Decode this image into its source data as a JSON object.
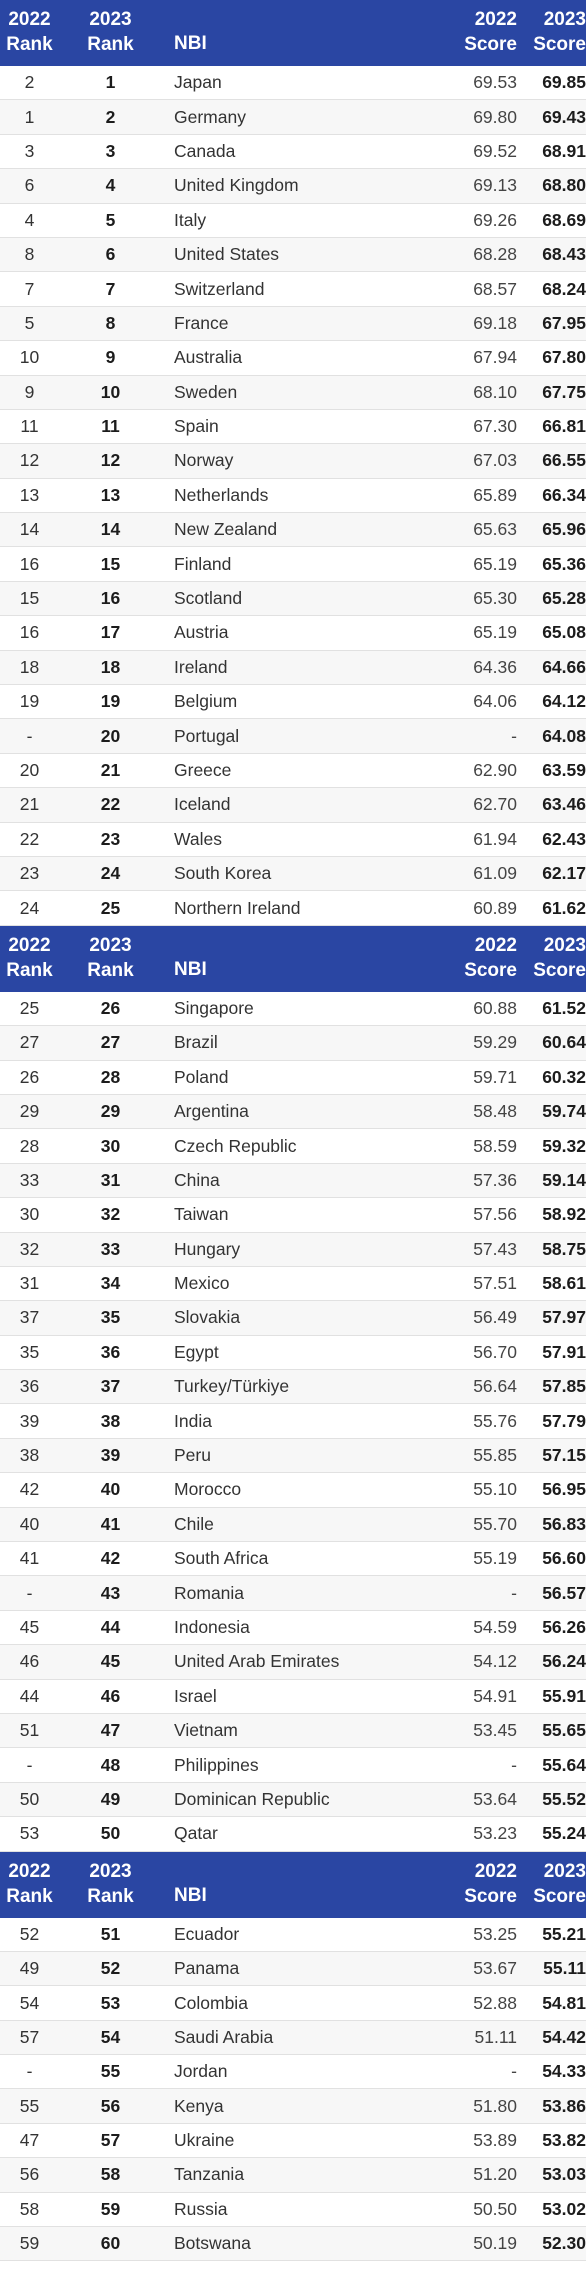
{
  "header": {
    "prev_rank": "2022\nRank",
    "prev_rank_l1": "2022",
    "prev_rank_l2": "Rank",
    "cur_rank_l1": "2023",
    "cur_rank_l2": "Rank",
    "name": "NBI",
    "prev_score_l1": "2022",
    "prev_score_l2": "Score",
    "cur_score_l1": "2023",
    "cur_score_l2": "Score"
  },
  "sections": [
    {
      "rows": [
        {
          "r22": "2",
          "r23": "1",
          "name": "Japan",
          "s22": "69.53",
          "s23": "69.85"
        },
        {
          "r22": "1",
          "r23": "2",
          "name": "Germany",
          "s22": "69.80",
          "s23": "69.43"
        },
        {
          "r22": "3",
          "r23": "3",
          "name": "Canada",
          "s22": "69.52",
          "s23": "68.91"
        },
        {
          "r22": "6",
          "r23": "4",
          "name": "United Kingdom",
          "s22": "69.13",
          "s23": "68.80"
        },
        {
          "r22": "4",
          "r23": "5",
          "name": "Italy",
          "s22": "69.26",
          "s23": "68.69"
        },
        {
          "r22": "8",
          "r23": "6",
          "name": "United States",
          "s22": "68.28",
          "s23": "68.43"
        },
        {
          "r22": "7",
          "r23": "7",
          "name": "Switzerland",
          "s22": "68.57",
          "s23": "68.24"
        },
        {
          "r22": "5",
          "r23": "8",
          "name": "France",
          "s22": "69.18",
          "s23": "67.95"
        },
        {
          "r22": "10",
          "r23": "9",
          "name": "Australia",
          "s22": "67.94",
          "s23": "67.80"
        },
        {
          "r22": "9",
          "r23": "10",
          "name": "Sweden",
          "s22": "68.10",
          "s23": "67.75"
        },
        {
          "r22": "11",
          "r23": "11",
          "name": "Spain",
          "s22": "67.30",
          "s23": "66.81"
        },
        {
          "r22": "12",
          "r23": "12",
          "name": "Norway",
          "s22": "67.03",
          "s23": "66.55"
        },
        {
          "r22": "13",
          "r23": "13",
          "name": "Netherlands",
          "s22": "65.89",
          "s23": "66.34"
        },
        {
          "r22": "14",
          "r23": "14",
          "name": "New Zealand",
          "s22": "65.63",
          "s23": "65.96"
        },
        {
          "r22": "16",
          "r23": "15",
          "name": "Finland",
          "s22": "65.19",
          "s23": "65.36"
        },
        {
          "r22": "15",
          "r23": "16",
          "name": "Scotland",
          "s22": "65.30",
          "s23": "65.28"
        },
        {
          "r22": "16",
          "r23": "17",
          "name": "Austria",
          "s22": "65.19",
          "s23": "65.08"
        },
        {
          "r22": "18",
          "r23": "18",
          "name": "Ireland",
          "s22": "64.36",
          "s23": "64.66"
        },
        {
          "r22": "19",
          "r23": "19",
          "name": "Belgium",
          "s22": "64.06",
          "s23": "64.12"
        },
        {
          "r22": "-",
          "r23": "20",
          "name": "Portugal",
          "s22": "-",
          "s23": "64.08"
        },
        {
          "r22": "20",
          "r23": "21",
          "name": "Greece",
          "s22": "62.90",
          "s23": "63.59"
        },
        {
          "r22": "21",
          "r23": "22",
          "name": "Iceland",
          "s22": "62.70",
          "s23": "63.46"
        },
        {
          "r22": "22",
          "r23": "23",
          "name": "Wales",
          "s22": "61.94",
          "s23": "62.43"
        },
        {
          "r22": "23",
          "r23": "24",
          "name": "South Korea",
          "s22": "61.09",
          "s23": "62.17"
        },
        {
          "r22": "24",
          "r23": "25",
          "name": "Northern Ireland",
          "s22": "60.89",
          "s23": "61.62"
        }
      ]
    },
    {
      "rows": [
        {
          "r22": "25",
          "r23": "26",
          "name": "Singapore",
          "s22": "60.88",
          "s23": "61.52"
        },
        {
          "r22": "27",
          "r23": "27",
          "name": "Brazil",
          "s22": "59.29",
          "s23": "60.64"
        },
        {
          "r22": "26",
          "r23": "28",
          "name": "Poland",
          "s22": "59.71",
          "s23": "60.32"
        },
        {
          "r22": "29",
          "r23": "29",
          "name": "Argentina",
          "s22": "58.48",
          "s23": "59.74"
        },
        {
          "r22": "28",
          "r23": "30",
          "name": "Czech Republic",
          "s22": "58.59",
          "s23": "59.32"
        },
        {
          "r22": "33",
          "r23": "31",
          "name": "China",
          "s22": "57.36",
          "s23": "59.14"
        },
        {
          "r22": "30",
          "r23": "32",
          "name": "Taiwan",
          "s22": "57.56",
          "s23": "58.92"
        },
        {
          "r22": "32",
          "r23": "33",
          "name": "Hungary",
          "s22": "57.43",
          "s23": "58.75"
        },
        {
          "r22": "31",
          "r23": "34",
          "name": "Mexico",
          "s22": "57.51",
          "s23": "58.61"
        },
        {
          "r22": "37",
          "r23": "35",
          "name": "Slovakia",
          "s22": "56.49",
          "s23": "57.97"
        },
        {
          "r22": "35",
          "r23": "36",
          "name": "Egypt",
          "s22": "56.70",
          "s23": "57.91"
        },
        {
          "r22": "36",
          "r23": "37",
          "name": "Turkey/Türkiye",
          "s22": "56.64",
          "s23": "57.85"
        },
        {
          "r22": "39",
          "r23": "38",
          "name": "India",
          "s22": "55.76",
          "s23": "57.79"
        },
        {
          "r22": "38",
          "r23": "39",
          "name": "Peru",
          "s22": "55.85",
          "s23": "57.15"
        },
        {
          "r22": "42",
          "r23": "40",
          "name": "Morocco",
          "s22": "55.10",
          "s23": "56.95"
        },
        {
          "r22": "40",
          "r23": "41",
          "name": "Chile",
          "s22": "55.70",
          "s23": "56.83"
        },
        {
          "r22": "41",
          "r23": "42",
          "name": "South Africa",
          "s22": "55.19",
          "s23": "56.60"
        },
        {
          "r22": "-",
          "r23": "43",
          "name": "Romania",
          "s22": "-",
          "s23": "56.57"
        },
        {
          "r22": "45",
          "r23": "44",
          "name": "Indonesia",
          "s22": "54.59",
          "s23": "56.26"
        },
        {
          "r22": "46",
          "r23": "45",
          "name": "United Arab Emirates",
          "s22": "54.12",
          "s23": "56.24"
        },
        {
          "r22": "44",
          "r23": "46",
          "name": "Israel",
          "s22": "54.91",
          "s23": "55.91"
        },
        {
          "r22": "51",
          "r23": "47",
          "name": "Vietnam",
          "s22": "53.45",
          "s23": "55.65"
        },
        {
          "r22": "-",
          "r23": "48",
          "name": "Philippines",
          "s22": "-",
          "s23": "55.64"
        },
        {
          "r22": "50",
          "r23": "49",
          "name": "Dominican Republic",
          "s22": "53.64",
          "s23": "55.52"
        },
        {
          "r22": "53",
          "r23": "50",
          "name": "Qatar",
          "s22": "53.23",
          "s23": "55.24"
        }
      ]
    },
    {
      "rows": [
        {
          "r22": "52",
          "r23": "51",
          "name": "Ecuador",
          "s22": "53.25",
          "s23": "55.21"
        },
        {
          "r22": "49",
          "r23": "52",
          "name": "Panama",
          "s22": "53.67",
          "s23": "55.11"
        },
        {
          "r22": "54",
          "r23": "53",
          "name": "Colombia",
          "s22": "52.88",
          "s23": "54.81"
        },
        {
          "r22": "57",
          "r23": "54",
          "name": "Saudi Arabia",
          "s22": "51.11",
          "s23": "54.42"
        },
        {
          "r22": "-",
          "r23": "55",
          "name": "Jordan",
          "s22": "-",
          "s23": "54.33"
        },
        {
          "r22": "55",
          "r23": "56",
          "name": "Kenya",
          "s22": "51.80",
          "s23": "53.86"
        },
        {
          "r22": "47",
          "r23": "57",
          "name": "Ukraine",
          "s22": "53.89",
          "s23": "53.82"
        },
        {
          "r22": "56",
          "r23": "58",
          "name": "Tanzania",
          "s22": "51.20",
          "s23": "53.03"
        },
        {
          "r22": "58",
          "r23": "59",
          "name": "Russia",
          "s22": "50.50",
          "s23": "53.02"
        },
        {
          "r22": "59",
          "r23": "60",
          "name": "Botswana",
          "s22": "50.19",
          "s23": "52.30"
        }
      ]
    }
  ]
}
